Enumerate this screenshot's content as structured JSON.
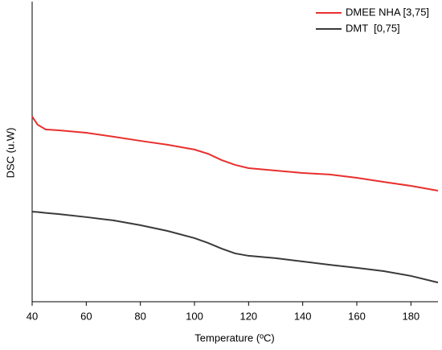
{
  "chart_data": {
    "type": "line",
    "xlabel": "Temperature (ºC)",
    "ylabel": "DSC (u.W)",
    "x": [
      40,
      42,
      45,
      50,
      60,
      70,
      80,
      90,
      100,
      105,
      110,
      115,
      120,
      130,
      140,
      150,
      160,
      170,
      180,
      190
    ],
    "series": [
      {
        "name": "DMEE NHA [3,75]",
        "color": "#e8302e",
        "values": [
          61.7,
          59.0,
          57.4,
          57.1,
          56.3,
          55.0,
          53.6,
          52.3,
          50.7,
          49.3,
          47.2,
          45.6,
          44.5,
          43.7,
          42.9,
          42.4,
          41.3,
          39.9,
          38.6,
          37.0
        ]
      },
      {
        "name": "DMT  [0,75]",
        "color": "#3a3a3a",
        "values": [
          30.0,
          29.9,
          29.6,
          29.2,
          28.2,
          27.1,
          25.5,
          23.6,
          21.2,
          19.6,
          17.7,
          16.1,
          15.3,
          14.5,
          13.4,
          12.3,
          11.3,
          10.2,
          8.6,
          6.4
        ]
      }
    ],
    "xlim": [
      40,
      190
    ],
    "xticks": [
      40,
      60,
      80,
      100,
      120,
      140,
      160,
      180
    ],
    "ylim": [
      0,
      100
    ],
    "yticks": [],
    "legend": "upper right"
  }
}
